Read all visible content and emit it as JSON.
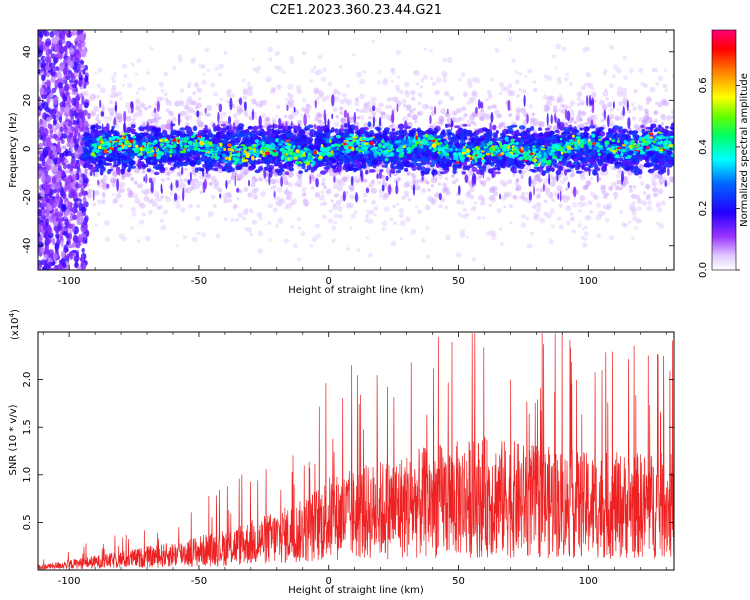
{
  "chart_data": [
    {
      "type": "heatmap",
      "title": "C2E1.2023.360.23.44.G21",
      "xlabel": "Height of straight line (km)",
      "ylabel": "Frequency (Hz)",
      "xlim": [
        -112,
        133
      ],
      "ylim": [
        -50,
        49
      ],
      "x_ticks": [
        -100,
        -50,
        0,
        50,
        100
      ],
      "y_ticks": [
        -40,
        -20,
        0,
        20,
        40
      ],
      "colorbar": {
        "label": "Normalized spectral amplitude",
        "range": [
          0,
          0.78
        ],
        "ticks": [
          "0.0",
          "0.2",
          "0.4",
          "0.6"
        ],
        "colormap": [
          "#ffffff",
          "#cc99ff",
          "#7700ff",
          "#0000ff",
          "#00ffff",
          "#00ff00",
          "#ffff00",
          "#ff8800",
          "#ff0000",
          "#ff0088"
        ]
      },
      "description_of_signal": {
        "noisy_region_x": [
          -112,
          -93
        ],
        "band_center_hz": 0,
        "band_halfwidth_hz": 8
      }
    },
    {
      "type": "line",
      "xlabel": "Height of straight line (km)",
      "ylabel": "SNR (10 * v/v)",
      "exponent_label": "(x10",
      "exponent_power": "4",
      "exponent_close": ")",
      "xlim": [
        -112,
        133
      ],
      "ylim": [
        0,
        25000
      ],
      "x_ticks": [
        -100,
        -50,
        0,
        50,
        100
      ],
      "y_ticks": [
        "0.5",
        "1.0",
        "1.5",
        "2.0"
      ],
      "y_tick_values": [
        5000,
        10000,
        15000,
        20000
      ],
      "series_color": "#ee2222",
      "envelope_x": [
        -112,
        -95,
        -80,
        -60,
        -40,
        -20,
        -10,
        0,
        20,
        40,
        60,
        80,
        100,
        133
      ],
      "envelope_y": [
        300,
        800,
        1200,
        1800,
        2600,
        3800,
        4500,
        6000,
        7000,
        8000,
        8500,
        8000,
        7500,
        7500
      ]
    }
  ]
}
